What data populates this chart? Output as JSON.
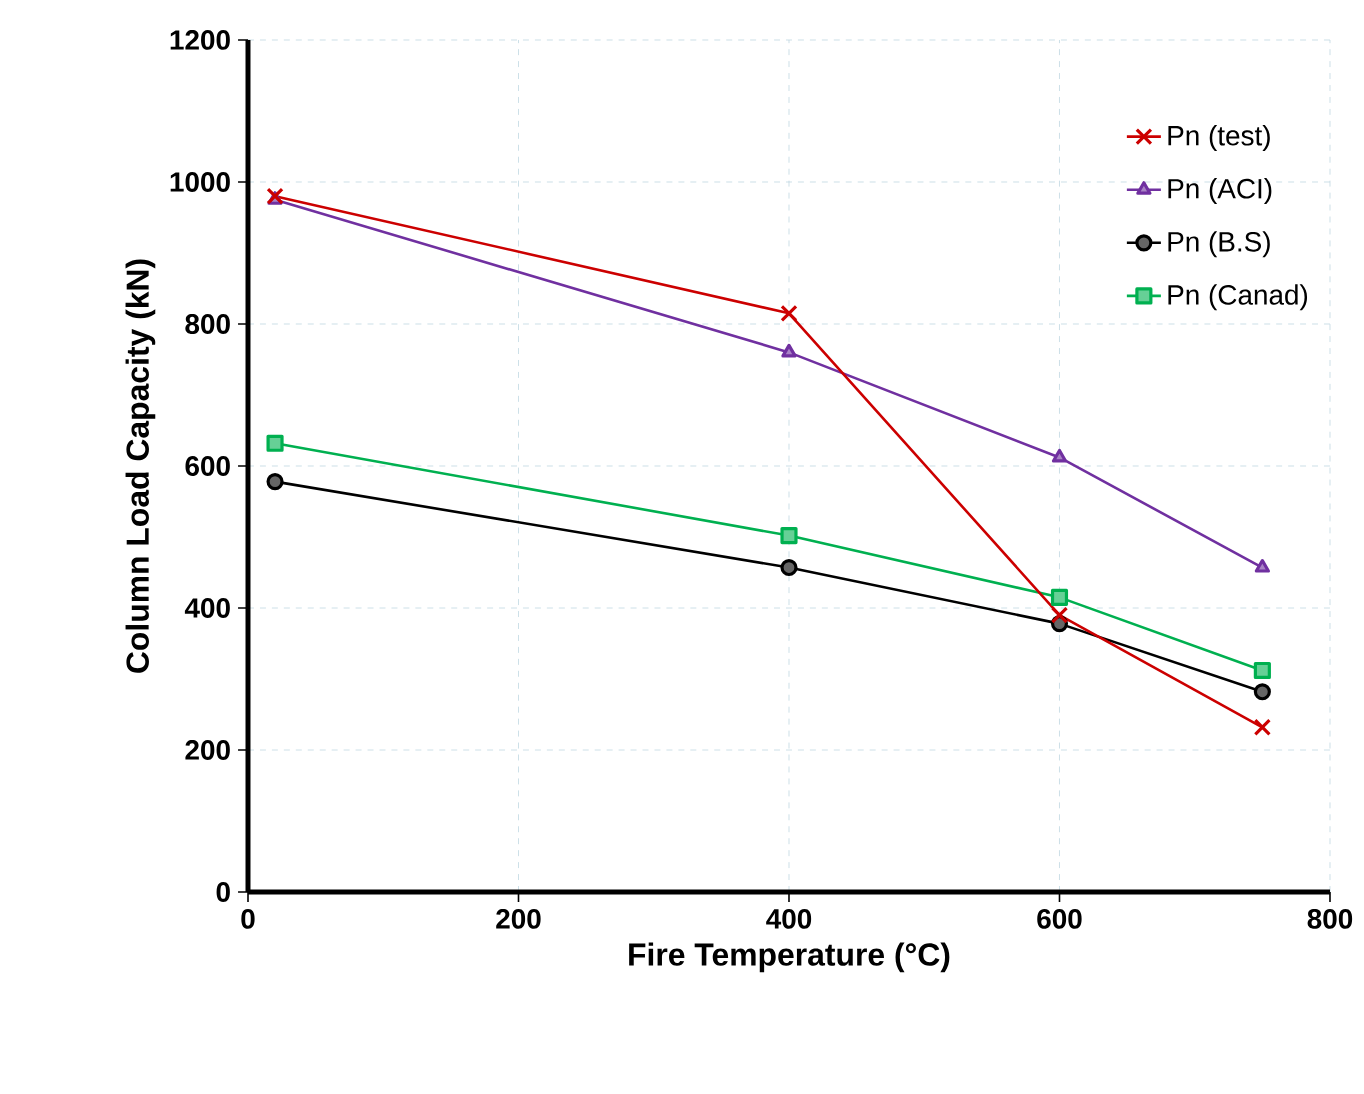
{
  "chart_data": {
    "type": "line",
    "xlabel": "Fire Temperature  (°C)",
    "ylabel": "Column Load Capacity  (kN)",
    "x": [
      20,
      400,
      600,
      750
    ],
    "series": [
      {
        "name": "Pn (test)",
        "color": "#cc0000",
        "marker": "cross",
        "values": [
          980,
          815,
          390,
          232
        ]
      },
      {
        "name": "Pn (ACI)",
        "color": "#7030a0",
        "marker": "triangle",
        "values": [
          975,
          760,
          612,
          457
        ]
      },
      {
        "name": "Pn (B.S)",
        "color": "#000000",
        "marker": "circle",
        "values": [
          578,
          457,
          378,
          282
        ]
      },
      {
        "name": "Pn (Canad)",
        "color": "#00b050",
        "marker": "square",
        "values": [
          632,
          502,
          415,
          312
        ]
      }
    ],
    "xlim": [
      0,
      800
    ],
    "xticks": [
      0,
      200,
      400,
      600,
      800
    ],
    "ylim": [
      0,
      1200
    ],
    "yticks": [
      0,
      200,
      400,
      600,
      800,
      1000,
      1200
    ],
    "grid": true,
    "legend": "top right",
    "line_style": "solid"
  }
}
